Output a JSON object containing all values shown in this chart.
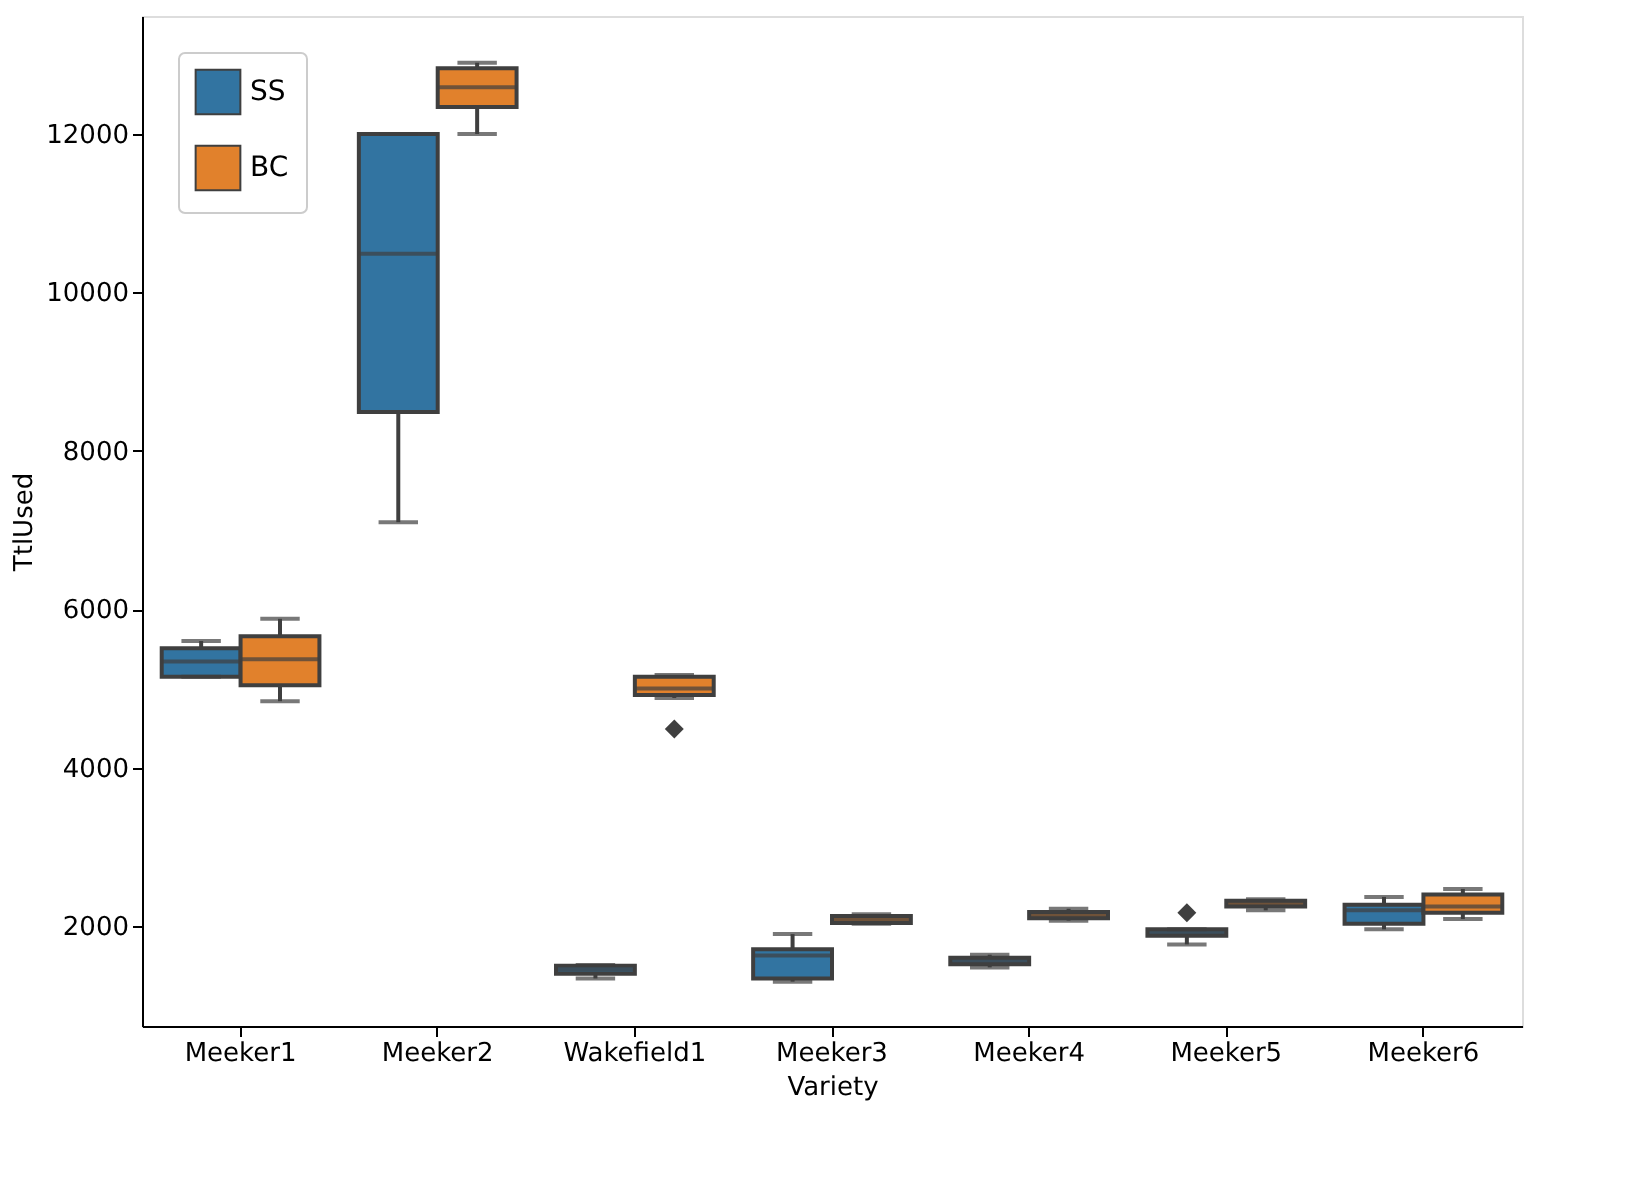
{
  "chart_data": {
    "type": "box",
    "xlabel": "Variety",
    "ylabel": "TtlUsed",
    "categories": [
      "Meeker1",
      "Meeker2",
      "Wakefield1",
      "Meeker3",
      "Meeker4",
      "Meeker5",
      "Meeker6"
    ],
    "ylim": [
      740,
      13490
    ],
    "yticks": [
      2000,
      4000,
      6000,
      8000,
      10000,
      12000
    ],
    "grid": false,
    "legend": "top left",
    "series": [
      {
        "name": "SS",
        "color": "#3274a1",
        "boxes": [
          {
            "low": 5150,
            "q1": 5150,
            "median": 5340,
            "q3": 5510,
            "high": 5600
          },
          {
            "low": 7100,
            "q1": 8490,
            "median": 10490,
            "q3": 12000,
            "high": 12000
          },
          {
            "low": 1340,
            "q1": 1400,
            "median": 1450,
            "q3": 1500,
            "high": 1510
          },
          {
            "low": 1300,
            "q1": 1340,
            "median": 1630,
            "q3": 1710,
            "high": 1900
          },
          {
            "low": 1480,
            "q1": 1520,
            "median": 1560,
            "q3": 1600,
            "high": 1640
          },
          {
            "low": 1770,
            "q1": 1880,
            "median": 1920,
            "q3": 1960,
            "high": 1960,
            "outliers": [
              2170
            ]
          },
          {
            "low": 1960,
            "q1": 2030,
            "median": 2200,
            "q3": 2270,
            "high": 2370
          }
        ]
      },
      {
        "name": "BC",
        "color": "#e1812c",
        "boxes": [
          {
            "low": 4840,
            "q1": 5040,
            "median": 5370,
            "q3": 5660,
            "high": 5880
          },
          {
            "low": 12000,
            "q1": 12340,
            "median": 12590,
            "q3": 12830,
            "high": 12900
          },
          {
            "low": 4880,
            "q1": 4920,
            "median": 5000,
            "q3": 5150,
            "high": 5170,
            "outliers": [
              4490
            ]
          },
          {
            "low": 2030,
            "q1": 2040,
            "median": 2080,
            "q3": 2130,
            "high": 2150
          },
          {
            "low": 2070,
            "q1": 2100,
            "median": 2140,
            "q3": 2180,
            "high": 2220
          },
          {
            "low": 2200,
            "q1": 2250,
            "median": 2290,
            "q3": 2320,
            "high": 2340
          },
          {
            "low": 2090,
            "q1": 2170,
            "median": 2250,
            "q3": 2400,
            "high": 2470
          }
        ]
      }
    ]
  }
}
